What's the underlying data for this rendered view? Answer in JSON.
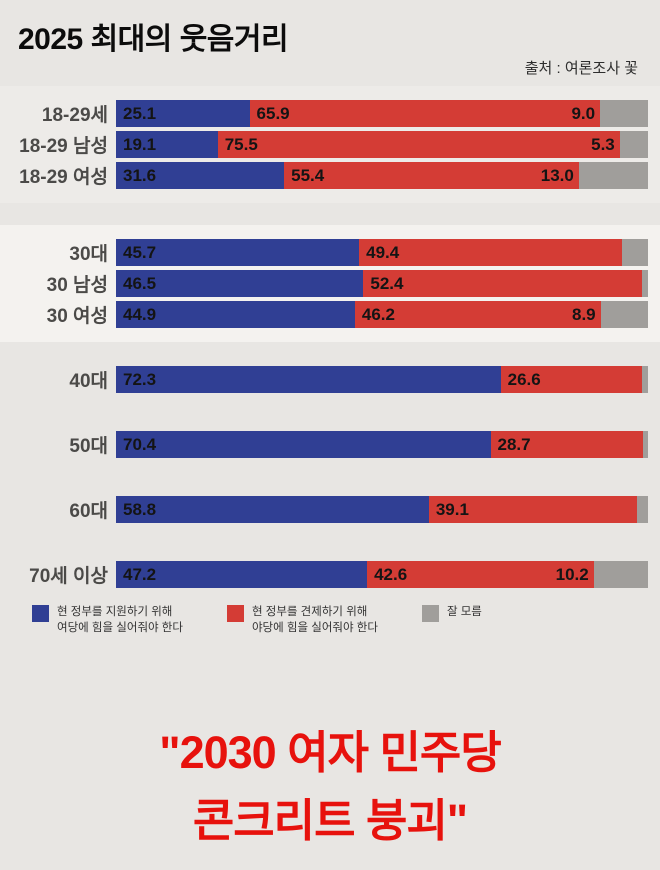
{
  "header": {
    "title": "2025 최대의 웃음거리",
    "source": "출처 : 여론조사 꽃"
  },
  "chart_data": {
    "type": "bar",
    "subtype": "horizontal_stacked_100pct",
    "unit": "percent",
    "categories": [
      "18-29세",
      "18-29 남성",
      "18-29 여성",
      "30대",
      "30 남성",
      "30 여성",
      "40대",
      "50대",
      "60대",
      "70세 이상"
    ],
    "series": [
      {
        "name": "support-ruling-party",
        "label": "현 정부를 지원하기 위해\n여당에 힘을 실어줘야 한다",
        "color": "#303f94",
        "values": [
          25.1,
          19.1,
          31.6,
          45.7,
          46.5,
          44.9,
          72.3,
          70.4,
          58.8,
          47.2
        ]
      },
      {
        "name": "check-government-opposition",
        "label": "현 정부를 견제하기 위해\n야당에 힘을 실어줘야 한다",
        "color": "#d43c35",
        "values": [
          65.9,
          75.5,
          55.4,
          49.4,
          52.4,
          46.2,
          26.6,
          28.7,
          39.1,
          42.6
        ]
      },
      {
        "name": "dont-know",
        "label": "잘 모름",
        "color": "#a09e9b",
        "values": [
          9.0,
          5.3,
          13.0,
          4.9,
          1.1,
          8.9,
          1.1,
          0.9,
          2.1,
          10.2
        ]
      }
    ],
    "gray_label_visible": [
      true,
      true,
      true,
      false,
      false,
      true,
      false,
      false,
      false,
      true
    ],
    "groups": [
      {
        "rows": [
          0,
          1,
          2
        ],
        "band": "band-a"
      },
      {
        "rows": [
          3,
          4,
          5
        ],
        "band": "band-b"
      },
      {
        "rows": [
          6,
          7,
          8,
          9
        ],
        "band": null
      }
    ],
    "xlim": [
      0,
      100
    ],
    "legend_position": "bottom"
  },
  "footer": {
    "caption_line1": "\"2030 여자 민주당",
    "caption_line2": "콘크리트 붕괴\""
  }
}
